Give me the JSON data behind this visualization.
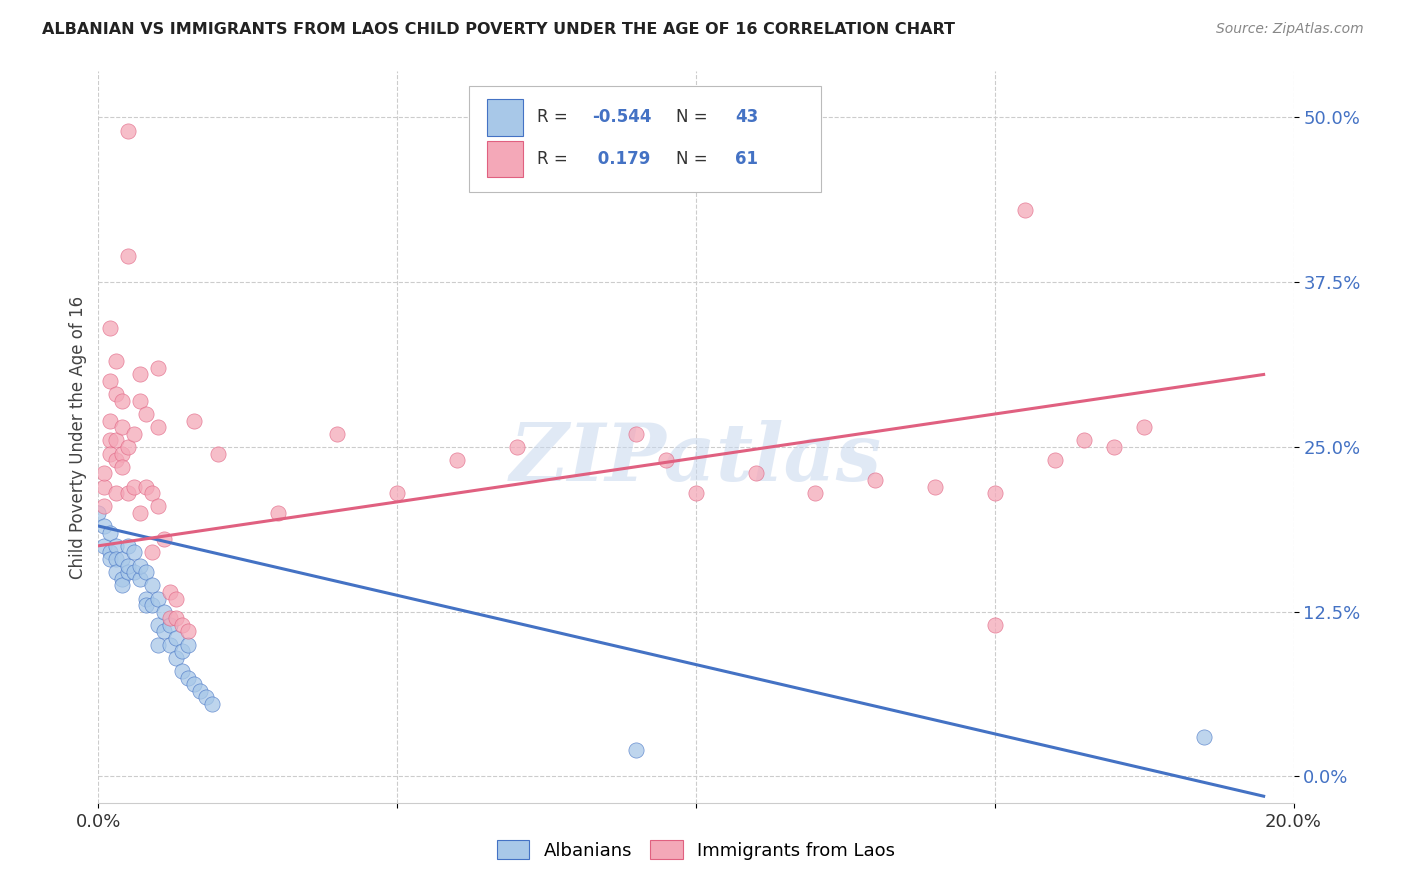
{
  "title": "ALBANIAN VS IMMIGRANTS FROM LAOS CHILD POVERTY UNDER THE AGE OF 16 CORRELATION CHART",
  "source": "Source: ZipAtlas.com",
  "ylabel": "Child Poverty Under the Age of 16",
  "xlim": [
    0.0,
    0.2
  ],
  "ylim": [
    -0.02,
    0.535
  ],
  "yticks": [
    0.0,
    0.125,
    0.25,
    0.375,
    0.5
  ],
  "ytick_labels": [
    "0.0%",
    "12.5%",
    "25.0%",
    "37.5%",
    "50.0%"
  ],
  "xticks": [
    0.0,
    0.05,
    0.1,
    0.15,
    0.2
  ],
  "xtick_labels": [
    "0.0%",
    "",
    "",
    "",
    "20.0%"
  ],
  "legend_r_albanian": "-0.544",
  "legend_n_albanian": "43",
  "legend_r_laos": "0.179",
  "legend_n_laos": "61",
  "albanian_color": "#a8c8e8",
  "laos_color": "#f4a8b8",
  "albanian_line_color": "#4472c4",
  "laos_line_color": "#e06080",
  "watermark": "ZIPatlas",
  "background_color": "#ffffff",
  "albanian_scatter": [
    [
      0.0,
      0.2
    ],
    [
      0.001,
      0.19
    ],
    [
      0.001,
      0.175
    ],
    [
      0.002,
      0.185
    ],
    [
      0.002,
      0.17
    ],
    [
      0.002,
      0.165
    ],
    [
      0.003,
      0.175
    ],
    [
      0.003,
      0.165
    ],
    [
      0.003,
      0.155
    ],
    [
      0.004,
      0.165
    ],
    [
      0.004,
      0.15
    ],
    [
      0.004,
      0.145
    ],
    [
      0.005,
      0.155
    ],
    [
      0.005,
      0.175
    ],
    [
      0.005,
      0.16
    ],
    [
      0.006,
      0.17
    ],
    [
      0.006,
      0.155
    ],
    [
      0.007,
      0.15
    ],
    [
      0.007,
      0.16
    ],
    [
      0.008,
      0.155
    ],
    [
      0.008,
      0.135
    ],
    [
      0.008,
      0.13
    ],
    [
      0.009,
      0.145
    ],
    [
      0.009,
      0.13
    ],
    [
      0.01,
      0.135
    ],
    [
      0.01,
      0.115
    ],
    [
      0.01,
      0.1
    ],
    [
      0.011,
      0.125
    ],
    [
      0.011,
      0.11
    ],
    [
      0.012,
      0.115
    ],
    [
      0.012,
      0.1
    ],
    [
      0.013,
      0.105
    ],
    [
      0.013,
      0.09
    ],
    [
      0.014,
      0.095
    ],
    [
      0.014,
      0.08
    ],
    [
      0.015,
      0.1
    ],
    [
      0.015,
      0.075
    ],
    [
      0.016,
      0.07
    ],
    [
      0.017,
      0.065
    ],
    [
      0.018,
      0.06
    ],
    [
      0.019,
      0.055
    ],
    [
      0.185,
      0.03
    ],
    [
      0.09,
      0.02
    ]
  ],
  "laos_scatter": [
    [
      0.001,
      0.22
    ],
    [
      0.001,
      0.23
    ],
    [
      0.001,
      0.205
    ],
    [
      0.002,
      0.34
    ],
    [
      0.002,
      0.3
    ],
    [
      0.002,
      0.27
    ],
    [
      0.002,
      0.255
    ],
    [
      0.002,
      0.245
    ],
    [
      0.003,
      0.315
    ],
    [
      0.003,
      0.29
    ],
    [
      0.003,
      0.255
    ],
    [
      0.003,
      0.24
    ],
    [
      0.003,
      0.215
    ],
    [
      0.004,
      0.285
    ],
    [
      0.004,
      0.265
    ],
    [
      0.004,
      0.245
    ],
    [
      0.004,
      0.235
    ],
    [
      0.005,
      0.49
    ],
    [
      0.005,
      0.395
    ],
    [
      0.005,
      0.25
    ],
    [
      0.005,
      0.215
    ],
    [
      0.006,
      0.26
    ],
    [
      0.006,
      0.22
    ],
    [
      0.007,
      0.305
    ],
    [
      0.007,
      0.285
    ],
    [
      0.007,
      0.2
    ],
    [
      0.008,
      0.275
    ],
    [
      0.008,
      0.22
    ],
    [
      0.009,
      0.215
    ],
    [
      0.009,
      0.17
    ],
    [
      0.01,
      0.31
    ],
    [
      0.01,
      0.265
    ],
    [
      0.01,
      0.205
    ],
    [
      0.011,
      0.18
    ],
    [
      0.012,
      0.14
    ],
    [
      0.012,
      0.12
    ],
    [
      0.013,
      0.135
    ],
    [
      0.013,
      0.12
    ],
    [
      0.014,
      0.115
    ],
    [
      0.015,
      0.11
    ],
    [
      0.016,
      0.27
    ],
    [
      0.02,
      0.245
    ],
    [
      0.03,
      0.2
    ],
    [
      0.04,
      0.26
    ],
    [
      0.05,
      0.215
    ],
    [
      0.06,
      0.24
    ],
    [
      0.07,
      0.25
    ],
    [
      0.09,
      0.26
    ],
    [
      0.095,
      0.24
    ],
    [
      0.1,
      0.215
    ],
    [
      0.11,
      0.23
    ],
    [
      0.12,
      0.215
    ],
    [
      0.13,
      0.225
    ],
    [
      0.14,
      0.22
    ],
    [
      0.15,
      0.215
    ],
    [
      0.155,
      0.43
    ],
    [
      0.16,
      0.24
    ],
    [
      0.165,
      0.255
    ],
    [
      0.17,
      0.25
    ],
    [
      0.175,
      0.265
    ],
    [
      0.15,
      0.115
    ]
  ],
  "albanian_line_x": [
    0.0,
    0.195
  ],
  "albanian_line_y": [
    0.19,
    -0.015
  ],
  "laos_line_x": [
    0.0,
    0.195
  ],
  "laos_line_y": [
    0.175,
    0.305
  ]
}
